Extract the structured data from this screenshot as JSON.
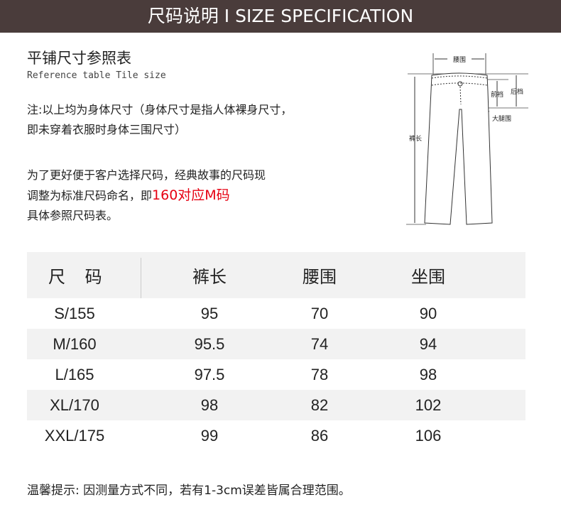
{
  "banner": {
    "title": "尺码说明 I SIZE SPECIFICATION",
    "bg_color": "#4a3c3b"
  },
  "section": {
    "title": "平铺尺寸参照表",
    "subtitle": "Reference table Tile size"
  },
  "note": {
    "line1": "注:以上均为身体尺寸（身体尺寸是指人体裸身尺寸，",
    "line2": "即未穿着衣服时身体三围尺寸）"
  },
  "desc": {
    "line1": "为了更好便于客户选择尺码，经典故事的尺码现",
    "line2_prefix": "调整为标准尺码命名，即",
    "line2_highlight": "160对应M码",
    "line3": "具体参照尺码表。",
    "highlight_color": "#e60012"
  },
  "diagram": {
    "waist": "腰围",
    "front_rise": "前裆",
    "back_rise": "后档",
    "thigh": "大腿围",
    "length": "裤长"
  },
  "table": {
    "headers": [
      "尺 码",
      "裤长",
      "腰围",
      "坐围"
    ],
    "rows": [
      [
        "S/155",
        "95",
        "70",
        "90"
      ],
      [
        "M/160",
        "95.5",
        "74",
        "94"
      ],
      [
        "L/165",
        "97.5",
        "78",
        "98"
      ],
      [
        "XL/170",
        "98",
        "82",
        "102"
      ],
      [
        "XXL/175",
        "99",
        "86",
        "106"
      ]
    ]
  },
  "footer": "温馨提示: 因测量方式不同，若有1-3cm误差皆属合理范围。"
}
